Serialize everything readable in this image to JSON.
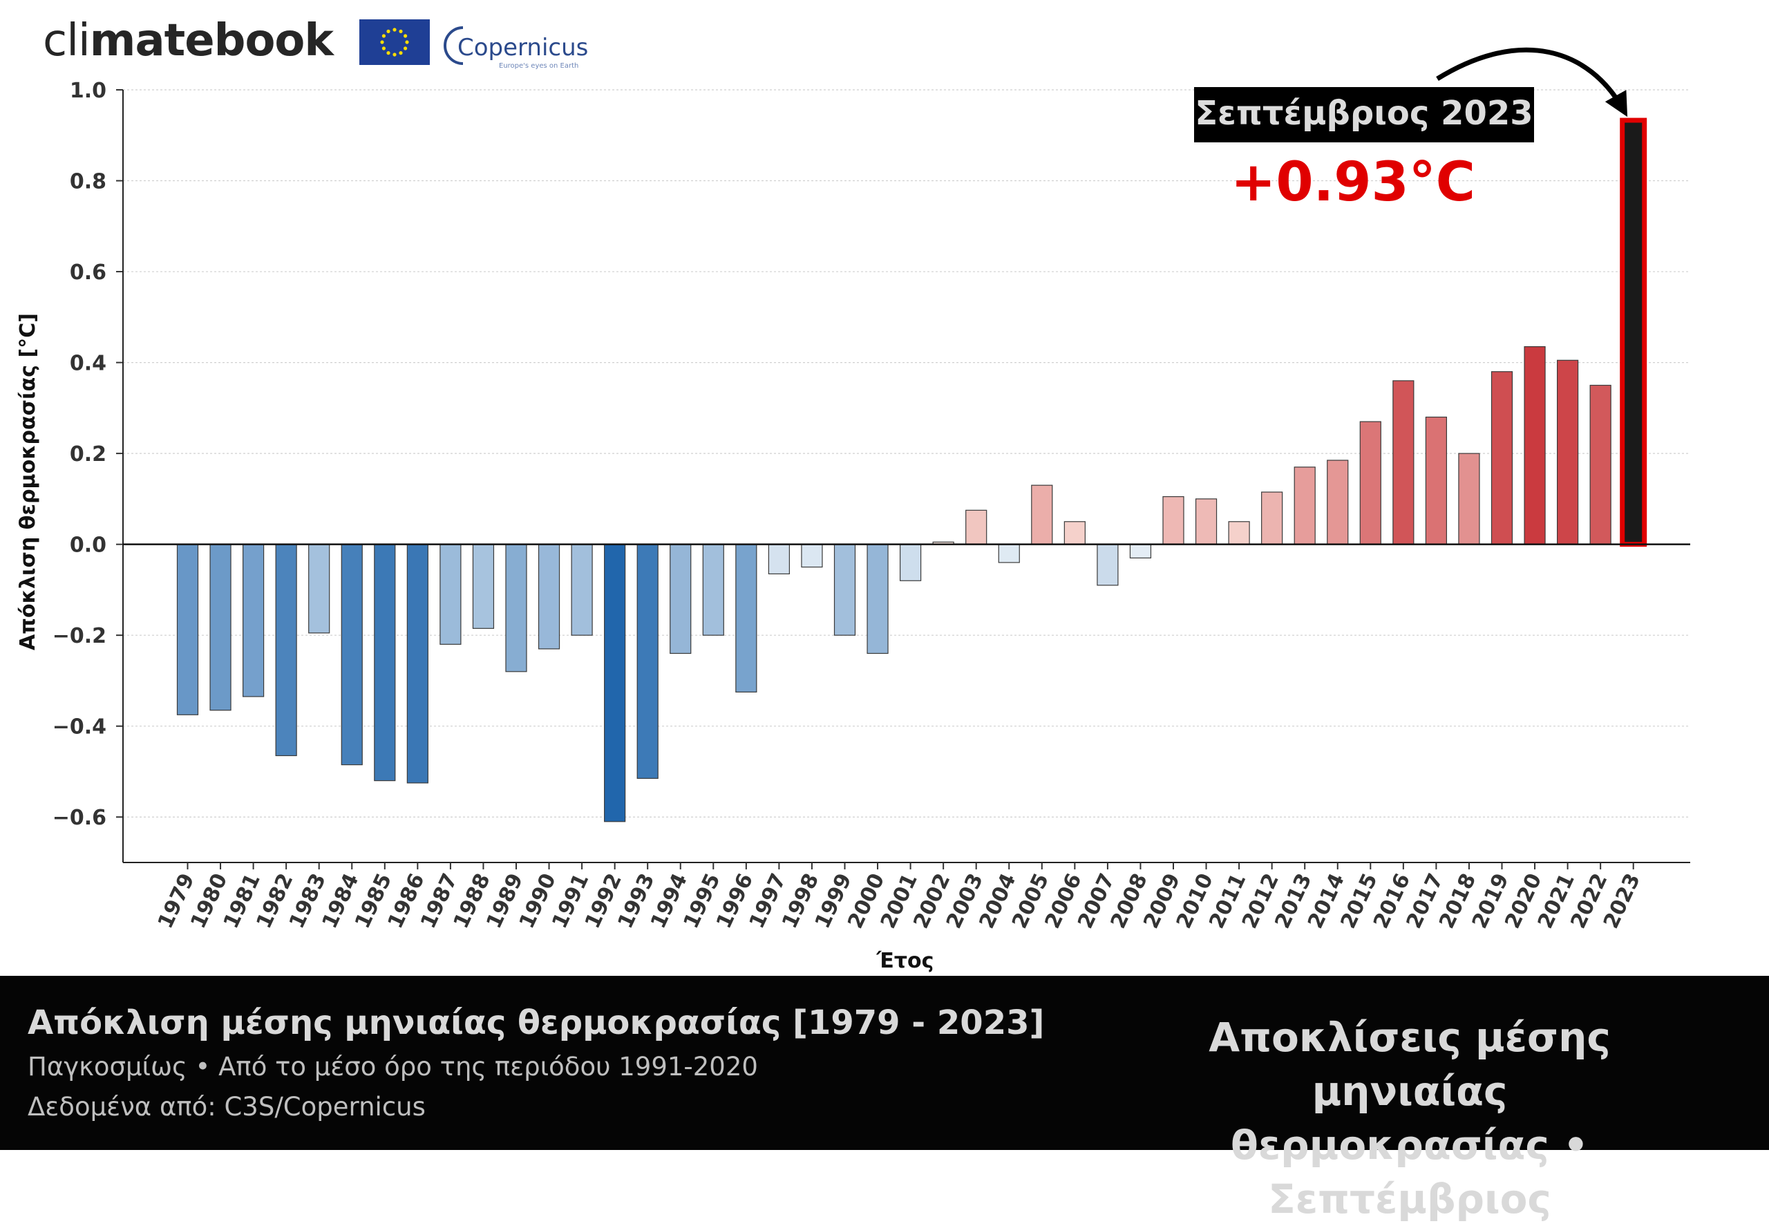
{
  "brand": {
    "logo_light": "cli",
    "logo_bold": "matebook",
    "partner": "Copernicus",
    "partner_tagline": "Europe's eyes on Earth"
  },
  "colors": {
    "cold_dark": "#2166ac",
    "cold_light": "#f4f8fb",
    "warm_light": "#fdeee6",
    "warm_dark": "#c8353a",
    "highlight_fill": "#1a1a1a",
    "highlight_outline": "#e00000",
    "accent_text": "#e00000",
    "footer_bg": "#050505"
  },
  "chart_data": {
    "type": "bar",
    "categories": [
      "1979",
      "1980",
      "1981",
      "1982",
      "1983",
      "1984",
      "1985",
      "1986",
      "1987",
      "1988",
      "1989",
      "1990",
      "1991",
      "1992",
      "1993",
      "1994",
      "1995",
      "1996",
      "1997",
      "1998",
      "1999",
      "2000",
      "2001",
      "2002",
      "2003",
      "2004",
      "2005",
      "2006",
      "2007",
      "2008",
      "2009",
      "2010",
      "2011",
      "2012",
      "2013",
      "2014",
      "2015",
      "2016",
      "2017",
      "2018",
      "2019",
      "2020",
      "2021",
      "2022",
      "2023"
    ],
    "values": [
      -0.375,
      -0.365,
      -0.335,
      -0.465,
      -0.195,
      -0.485,
      -0.52,
      -0.525,
      -0.22,
      -0.185,
      -0.28,
      -0.23,
      -0.2,
      -0.61,
      -0.515,
      -0.24,
      -0.2,
      -0.325,
      -0.065,
      -0.05,
      -0.2,
      -0.24,
      -0.08,
      0.005,
      0.075,
      -0.04,
      0.13,
      0.05,
      -0.09,
      -0.03,
      0.105,
      0.1,
      0.05,
      0.115,
      0.17,
      0.185,
      0.27,
      0.36,
      0.28,
      0.2,
      0.38,
      0.435,
      0.405,
      0.35,
      0.93
    ],
    "xlabel": "Έτος",
    "ylabel": "Απόκλιση θερμοκρασίας [°C]",
    "ylim": [
      -0.7,
      1.0
    ],
    "yticks": [
      -0.6,
      -0.4,
      -0.2,
      0.0,
      0.2,
      0.4,
      0.6,
      0.8,
      1.0
    ],
    "ytick_labels": [
      "−0.6",
      "−0.4",
      "−0.2",
      "0.0",
      "0.2",
      "0.4",
      "0.6",
      "0.8",
      "1.0"
    ],
    "grid": true,
    "highlight": {
      "category": "2023",
      "label": "Σεπτέμβριος 2023",
      "value_label": "+0.93°C"
    }
  },
  "footer": {
    "title": "Απόκλιση μέσης μηνιαίας θερμοκρασίας [1979 - 2023]",
    "subtitle": "Παγκοσμίως • Από το μέσο όρο της περιόδου 1991-2020",
    "source": "Δεδομένα από: C3S/Copernicus",
    "right_line1": "Αποκλίσεις μέσης μηνιαίας",
    "right_line2": "θερμοκρασίας • Σεπτέμβριος"
  }
}
